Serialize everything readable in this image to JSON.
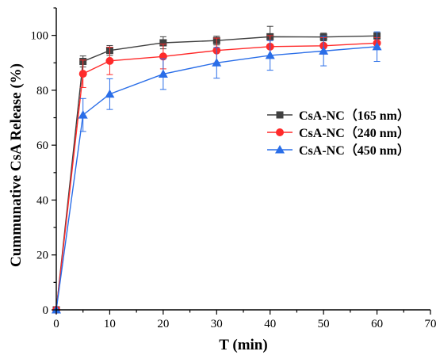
{
  "chart_data": {
    "type": "line",
    "xlabel": "T (min)",
    "ylabel": "Cummunative CsA Release (%)",
    "xlim": [
      0,
      70
    ],
    "ylim": [
      0,
      110
    ],
    "xticks": [
      0,
      10,
      20,
      30,
      40,
      50,
      60,
      70
    ],
    "yticks": [
      0,
      20,
      40,
      60,
      80,
      100
    ],
    "x": [
      0,
      5,
      10,
      20,
      30,
      40,
      50,
      60
    ],
    "legend_position": "center-right",
    "series": [
      {
        "name": "CsA-NC（165 nm）",
        "color": "#404040",
        "marker": "square",
        "values": [
          0,
          90.5,
          94.5,
          97.3,
          98.1,
          99.5,
          99.4,
          99.8
        ],
        "errors": [
          0,
          2,
          1.8,
          2.2,
          1.6,
          3.8,
          1.4,
          0.8
        ]
      },
      {
        "name": "CsA-NC（240 nm）",
        "color": "#ff2a2a",
        "marker": "circle",
        "values": [
          0,
          86,
          90.7,
          92.3,
          94.5,
          95.9,
          96.2,
          97.2
        ],
        "errors": [
          0,
          5,
          5,
          4.5,
          4.5,
          4,
          3,
          2
        ]
      },
      {
        "name": "CsA-NC（450 nm）",
        "color": "#2a6ee8",
        "marker": "triangle",
        "values": [
          0,
          71,
          78.6,
          85.9,
          90,
          92.7,
          94.3,
          95.9
        ],
        "errors": [
          0,
          6,
          5.6,
          5.6,
          5.6,
          5.4,
          5.4,
          5.4
        ]
      }
    ]
  }
}
